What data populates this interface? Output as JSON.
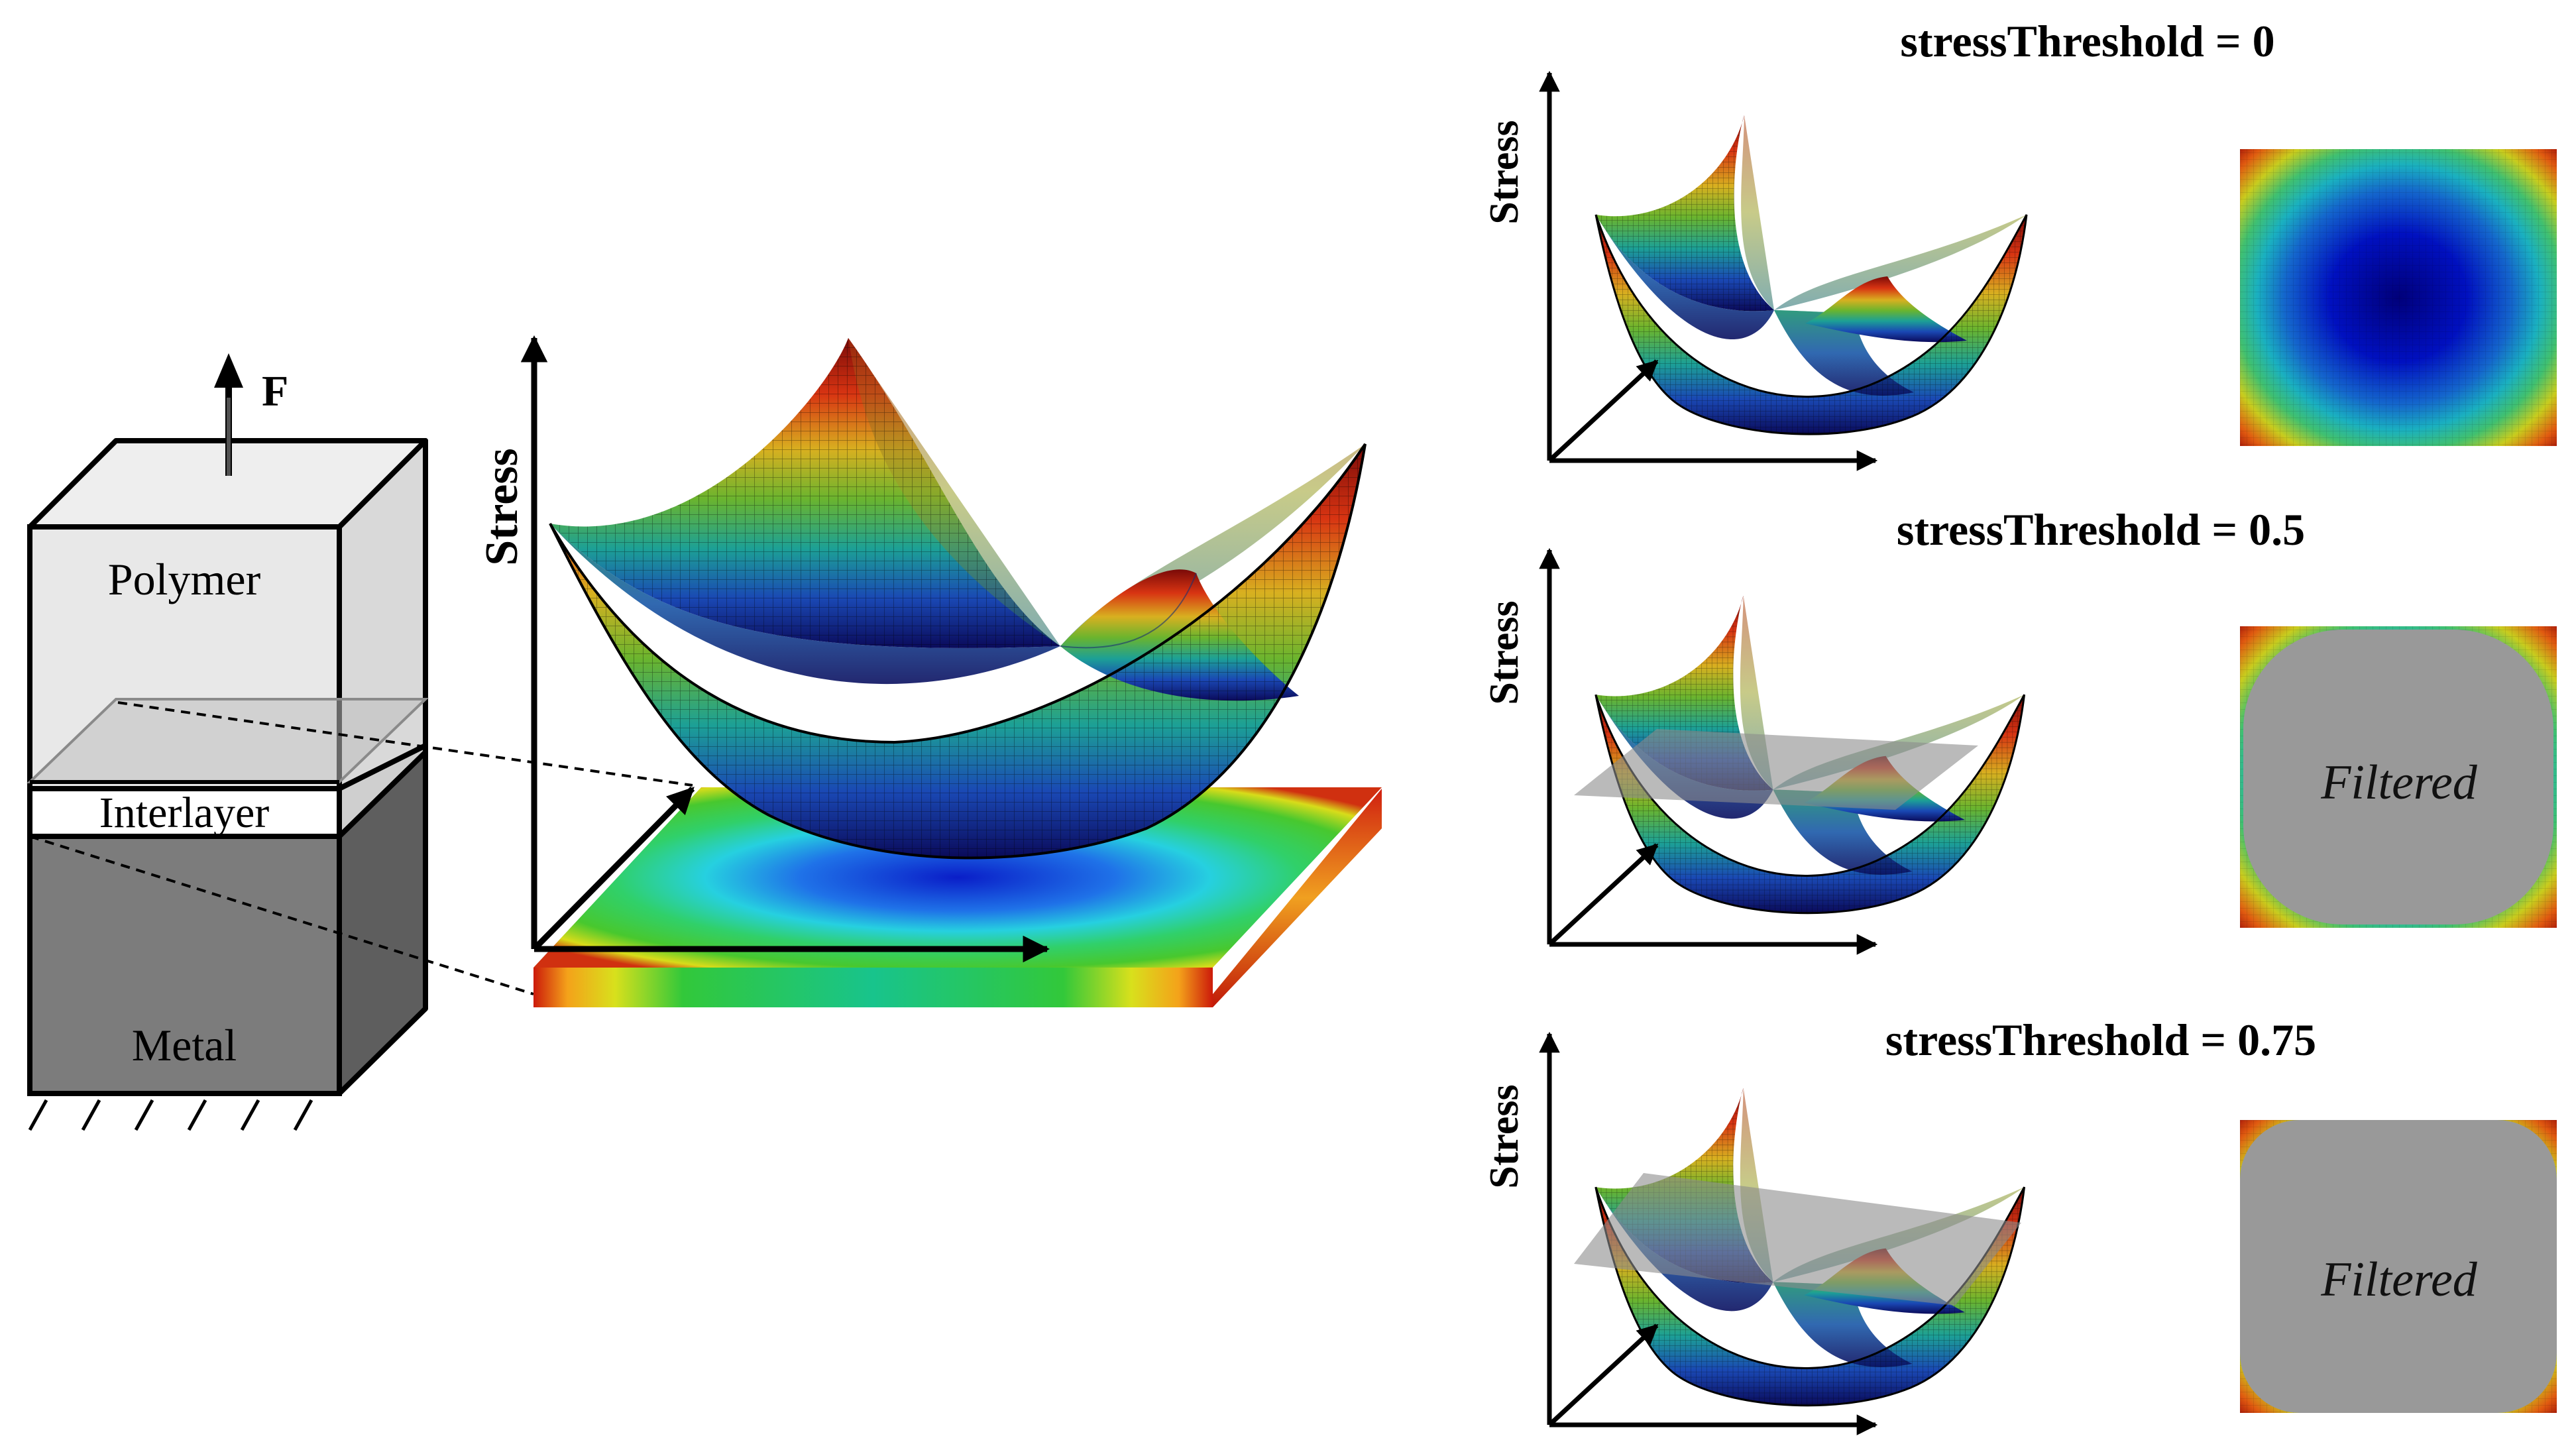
{
  "force_label": "F",
  "layers": {
    "polymer": "Polymer",
    "interlayer": "Interlayer",
    "metal": "Metal"
  },
  "axis_label": "Stress",
  "panels": [
    {
      "title": "stressThreshold = 0",
      "filtered_label": ""
    },
    {
      "title": "stressThreshold = 0.5",
      "filtered_label": "Filtered"
    },
    {
      "title": "stressThreshold = 0.75",
      "filtered_label": "Filtered"
    }
  ],
  "colors": {
    "polymer_fill": "#e6e6e6",
    "metal_fill": "#7a7a7a",
    "filtered_gray": "#999999",
    "colormap": "jet"
  }
}
